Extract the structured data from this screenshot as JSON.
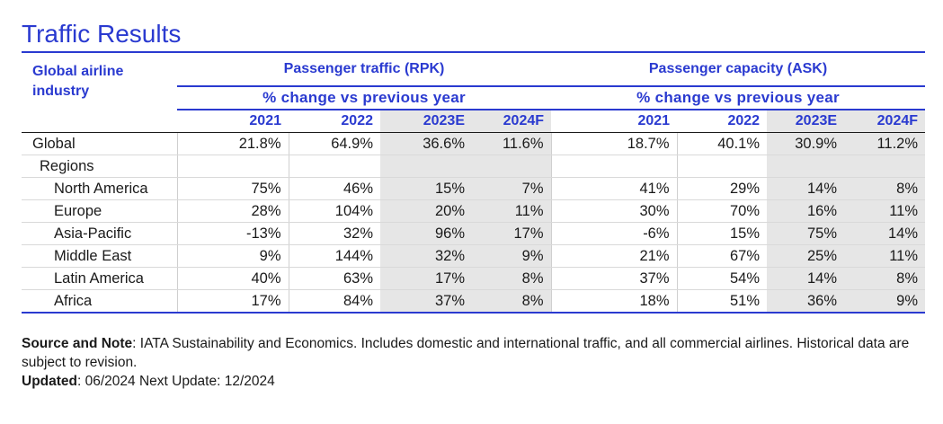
{
  "title": "Traffic Results",
  "table": {
    "row_header": "Global airline industry",
    "groups": [
      {
        "label": "Passenger traffic (RPK)",
        "sublabel": "% change vs previous year"
      },
      {
        "label": "Passenger capacity (ASK)",
        "sublabel": "% change vs previous year"
      }
    ],
    "years": [
      "2021",
      "2022",
      "2023E",
      "2024F",
      "2021",
      "2022",
      "2023E",
      "2024F"
    ],
    "rows": [
      {
        "label": "Global",
        "indent": 0,
        "values": [
          "21.8%",
          "64.9%",
          "36.6%",
          "11.6%",
          "18.7%",
          "40.1%",
          "30.9%",
          "11.2%"
        ]
      },
      {
        "label": "Regions",
        "indent": 1,
        "values": [
          "",
          "",
          "",
          "",
          "",
          "",
          "",
          ""
        ]
      },
      {
        "label": "North America",
        "indent": 2,
        "values": [
          "75%",
          "46%",
          "15%",
          "7%",
          "41%",
          "29%",
          "14%",
          "8%"
        ]
      },
      {
        "label": "Europe",
        "indent": 2,
        "values": [
          "28%",
          "104%",
          "20%",
          "11%",
          "30%",
          "70%",
          "16%",
          "11%"
        ]
      },
      {
        "label": "Asia-Pacific",
        "indent": 2,
        "values": [
          "-13%",
          "32%",
          "96%",
          "17%",
          "-6%",
          "15%",
          "75%",
          "14%"
        ]
      },
      {
        "label": "Middle East",
        "indent": 2,
        "values": [
          "9%",
          "144%",
          "32%",
          "9%",
          "21%",
          "67%",
          "25%",
          "11%"
        ]
      },
      {
        "label": "Latin America",
        "indent": 2,
        "values": [
          "40%",
          "63%",
          "17%",
          "8%",
          "37%",
          "54%",
          "14%",
          "8%"
        ]
      },
      {
        "label": "Africa",
        "indent": 2,
        "values": [
          "17%",
          "84%",
          "37%",
          "8%",
          "18%",
          "51%",
          "36%",
          "9%"
        ]
      }
    ]
  },
  "notes": {
    "source_label": "Source and Note",
    "source_text": ": IATA Sustainability and Economics. Includes domestic and international traffic, and all commercial airlines. Historical data are subject to revision.",
    "updated_label": "Updated",
    "updated_text": ": 06/2024 Next Update: 12/2024"
  },
  "colors": {
    "accent": "#2a3ad0",
    "shade": "#e6e6e6"
  }
}
